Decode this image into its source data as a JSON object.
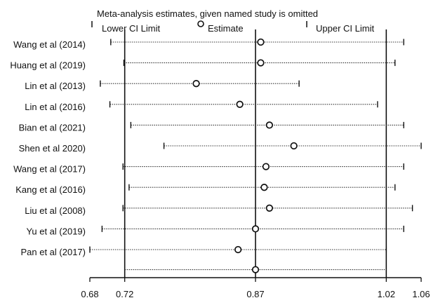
{
  "chart_data": {
    "type": "forest",
    "title": "Meta-analysis estimates, given named study is omitted",
    "legend": {
      "lower": "Lower CI Limit",
      "estimate": "Estimate",
      "upper": "Upper CI Limit"
    },
    "x_ticks": [
      "0.68",
      "0.72",
      "0.87",
      "1.02",
      "1.06"
    ],
    "xlim": [
      0.68,
      1.06
    ],
    "reference_lines": [
      0.72,
      0.87,
      1.02
    ],
    "studies": [
      {
        "label": "Wang et al (2014)",
        "lower": 0.704,
        "estimate": 0.876,
        "upper": 1.04
      },
      {
        "label": "Huang et al (2019)",
        "lower": 0.719,
        "estimate": 0.876,
        "upper": 1.03
      },
      {
        "label": "Lin et al (2013)",
        "lower": 0.692,
        "estimate": 0.802,
        "upper": 0.92
      },
      {
        "label": "Lin et al (2016)",
        "lower": 0.703,
        "estimate": 0.852,
        "upper": 1.01
      },
      {
        "label": "Bian et al (2021)",
        "lower": 0.727,
        "estimate": 0.886,
        "upper": 1.04
      },
      {
        "label": "Shen et al 2020)",
        "lower": 0.765,
        "estimate": 0.914,
        "upper": 1.06
      },
      {
        "label": "Wang et al (2017)",
        "lower": 0.718,
        "estimate": 0.882,
        "upper": 1.04
      },
      {
        "label": "Kang et al (2016)",
        "lower": 0.725,
        "estimate": 0.88,
        "upper": 1.03
      },
      {
        "label": "Liu et al (2008)",
        "lower": 0.718,
        "estimate": 0.886,
        "upper": 1.05
      },
      {
        "label": "Yu et al (2019)",
        "lower": 0.694,
        "estimate": 0.87,
        "upper": 1.04
      },
      {
        "label": "Pan et al (2017)",
        "lower": 0.68,
        "estimate": 0.85,
        "upper": 1.02
      }
    ],
    "combined": {
      "lower": 0.72,
      "estimate": 0.87,
      "upper": 1.02
    }
  }
}
